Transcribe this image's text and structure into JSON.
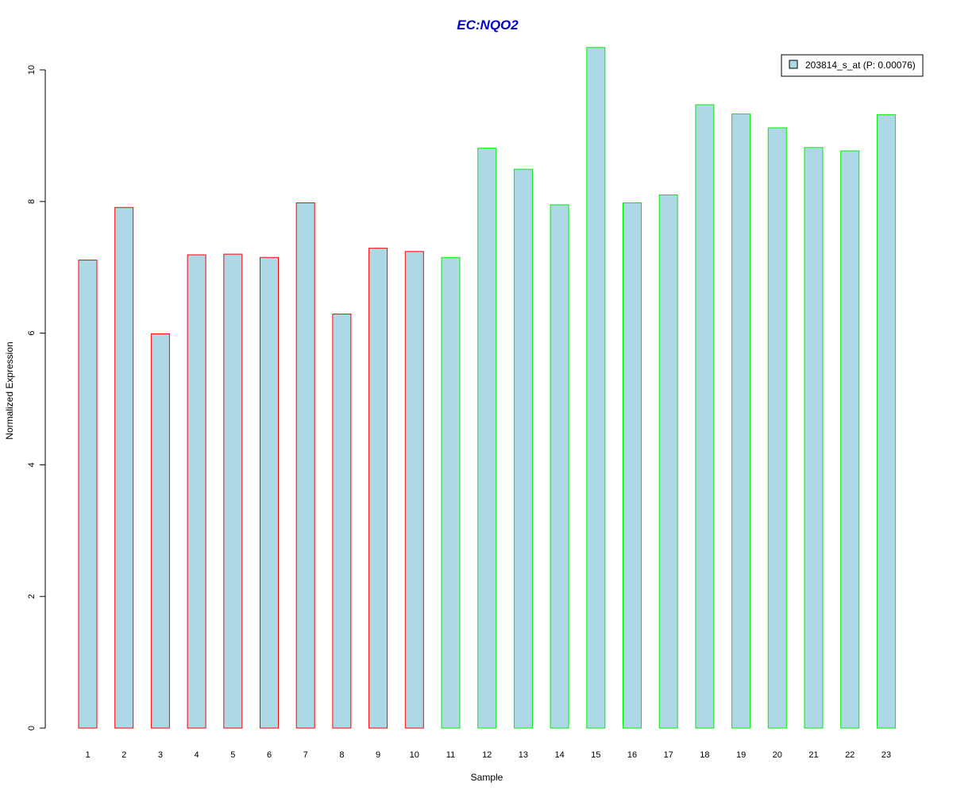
{
  "chart_data": {
    "type": "bar",
    "title": "EC:NQO2",
    "xlabel": "Sample",
    "ylabel": "Normalized Expression",
    "ylim": [
      0,
      10.4
    ],
    "yticks": [
      0,
      2,
      4,
      6,
      8,
      10
    ],
    "categories": [
      "1",
      "2",
      "3",
      "4",
      "5",
      "6",
      "7",
      "8",
      "9",
      "10",
      "11",
      "12",
      "13",
      "14",
      "15",
      "16",
      "17",
      "18",
      "19",
      "20",
      "21",
      "22",
      "23"
    ],
    "series": [
      {
        "name": "203814_s_at (P: 0.00076)",
        "values": [
          7.11,
          7.91,
          5.99,
          7.19,
          7.2,
          7.15,
          7.98,
          6.29,
          7.29,
          7.24,
          7.15,
          8.81,
          8.49,
          7.95,
          10.34,
          7.98,
          8.1,
          9.47,
          9.33,
          9.12,
          8.82,
          8.77,
          9.32
        ]
      }
    ],
    "groups": [
      {
        "samples": [
          "1",
          "2",
          "3",
          "4",
          "5",
          "6",
          "7",
          "8",
          "9",
          "10"
        ],
        "color": "#ff0000"
      },
      {
        "samples": [
          "11",
          "12",
          "13",
          "14",
          "15",
          "16",
          "17",
          "18",
          "19",
          "20",
          "21",
          "22",
          "23"
        ],
        "color": "#00ee00"
      }
    ],
    "bar_fill": "#add8e6",
    "title_color": "#0000cc",
    "legend_position": "top-right",
    "grid": false
  }
}
